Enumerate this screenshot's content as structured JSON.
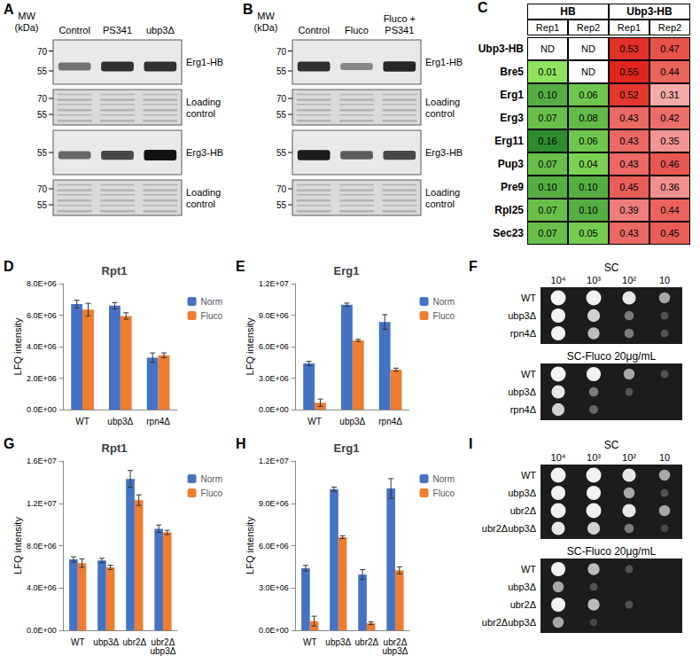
{
  "panels": [
    {
      "label": "A",
      "type": "blot",
      "mw_title": "MW\n(kDa)",
      "lanes": [
        "Control",
        "PS341",
        "ubp3Δ"
      ],
      "rows": [
        {
          "name": "Erg1-HB",
          "kind": "blot",
          "markers": [
            "70",
            "55"
          ],
          "bands": [
            0.55,
            0.85,
            0.85
          ]
        },
        {
          "name": "Loading\ncontrol",
          "kind": "loading",
          "markers": [
            "70",
            "55"
          ]
        },
        {
          "name": "Erg3-HB",
          "kind": "blot",
          "markers": [
            "55"
          ],
          "bands": [
            0.6,
            0.75,
            1.0
          ]
        },
        {
          "name": "Loading\ncontrol",
          "kind": "loading",
          "markers": [
            "70",
            "55"
          ]
        }
      ]
    },
    {
      "label": "B",
      "type": "blot",
      "mw_title": "MW\n(kDa)",
      "lanes": [
        "Control",
        "Fluco",
        "Fluco +\nPS341"
      ],
      "rows": [
        {
          "name": "Erg1-HB",
          "kind": "blot",
          "markers": [
            "70",
            "55"
          ],
          "bands": [
            0.85,
            0.45,
            0.9
          ]
        },
        {
          "name": "Loading\ncontrol",
          "kind": "loading",
          "markers": [
            "70",
            "55"
          ]
        },
        {
          "name": "Erg3-HB",
          "kind": "blot",
          "markers": [
            "55"
          ],
          "bands": [
            0.95,
            0.65,
            0.75
          ]
        },
        {
          "name": "Loading\ncontrol",
          "kind": "loading",
          "markers": [
            "70",
            "55"
          ]
        }
      ]
    },
    {
      "label": "C",
      "type": "table",
      "groups": [
        {
          "name": "HB",
          "columns": [
            "Rep1",
            "Rep2"
          ]
        },
        {
          "name": "Ubp3-HB",
          "columns": [
            "Rep1",
            "Rep2"
          ]
        }
      ],
      "rows": [
        {
          "name": "Ubp3-HB",
          "cells": [
            "ND",
            "ND",
            "0.53",
            "0.47"
          ]
        },
        {
          "name": "Bre5",
          "cells": [
            "0.01",
            "ND",
            "0.55",
            "0.44"
          ]
        },
        {
          "name": "Erg1",
          "cells": [
            "0.10",
            "0.06",
            "0.52",
            "0.31"
          ]
        },
        {
          "name": "Erg3",
          "cells": [
            "0.07",
            "0.08",
            "0.43",
            "0.42"
          ]
        },
        {
          "name": "Erg11",
          "cells": [
            "0.16",
            "0.06",
            "0.43",
            "0.35"
          ]
        },
        {
          "name": "Pup3",
          "cells": [
            "0.07",
            "0.04",
            "0.43",
            "0.46"
          ]
        },
        {
          "name": "Pre9",
          "cells": [
            "0.10",
            "0.10",
            "0.45",
            "0.36"
          ]
        },
        {
          "name": "Rpl25",
          "cells": [
            "0.07",
            "0.10",
            "0.39",
            "0.44"
          ]
        },
        {
          "name": "Sec23",
          "cells": [
            "0.07",
            "0.05",
            "0.43",
            "0.45"
          ]
        }
      ]
    },
    {
      "label": "F",
      "type": "spot_assay",
      "columns": [
        "10⁴",
        "10³",
        "10²",
        "10"
      ],
      "plates": [
        {
          "medium": "SC",
          "rows": [
            {
              "strain": "WT",
              "growth": [
                1.0,
                1.0,
                0.8,
                0.5
              ]
            },
            {
              "strain": "ubp3Δ",
              "growth": [
                0.9,
                0.7,
                0.3,
                0.1
              ]
            },
            {
              "strain": "rpn4Δ",
              "growth": [
                0.9,
                0.6,
                0.3,
                0.1
              ]
            }
          ]
        },
        {
          "medium": "SC-Fluco 20μg/mL",
          "rows": [
            {
              "strain": "WT",
              "growth": [
                1.0,
                0.9,
                0.5,
                0.1
              ]
            },
            {
              "strain": "ubp3Δ",
              "growth": [
                0.8,
                0.3,
                0.1,
                0.0
              ]
            },
            {
              "strain": "rpn4Δ",
              "growth": [
                0.7,
                0.2,
                0.0,
                0.0
              ]
            }
          ]
        }
      ]
    },
    {
      "label": "I",
      "type": "spot_assay",
      "columns": [
        "10⁴",
        "10³",
        "10²",
        "10"
      ],
      "plates": [
        {
          "medium": "SC",
          "rows": [
            {
              "strain": "WT",
              "growth": [
                1.0,
                1.0,
                0.8,
                0.5
              ]
            },
            {
              "strain": "ubp3Δ",
              "growth": [
                0.9,
                0.9,
                0.5,
                0.1
              ]
            },
            {
              "strain": "ubr2Δ",
              "growth": [
                1.0,
                1.0,
                0.8,
                0.5
              ]
            },
            {
              "strain": "ubr2Δubp3Δ",
              "growth": [
                0.8,
                0.7,
                0.3,
                0.05
              ]
            }
          ]
        },
        {
          "medium": "SC-Fluco 20μg/mL",
          "rows": [
            {
              "strain": "WT",
              "growth": [
                0.9,
                0.6,
                0.1,
                0.0
              ]
            },
            {
              "strain": "ubp3Δ",
              "growth": [
                0.5,
                0.1,
                0.0,
                0.0
              ]
            },
            {
              "strain": "ubr2Δ",
              "growth": [
                0.9,
                0.6,
                0.1,
                0.0
              ]
            },
            {
              "strain": "ubr2Δubp3Δ",
              "growth": [
                0.5,
                0.05,
                0.0,
                0.0
              ]
            }
          ]
        }
      ]
    }
  ],
  "chart_data": [
    {
      "label": "D",
      "type": "bar",
      "title": "Rpt1",
      "y_label": "LFQ intensity",
      "categories": [
        "WT",
        "ubp3Δ",
        "rpn4Δ"
      ],
      "series": [
        {
          "name": "Norm",
          "color": "#4472C4",
          "values": [
            6700000,
            6600000,
            3300000
          ],
          "errors": [
            250000,
            200000,
            300000
          ]
        },
        {
          "name": "Fluco",
          "color": "#ED7D31",
          "values": [
            6350000,
            5950000,
            3450000
          ],
          "errors": [
            400000,
            200000,
            150000
          ]
        }
      ],
      "ylim": [
        0,
        8000000
      ],
      "yticks": [
        {
          "value": 0,
          "label": "0.0E+00"
        },
        {
          "value": 2000000,
          "label": "2.0E+06"
        },
        {
          "value": 4000000,
          "label": "4.0E+06"
        },
        {
          "value": 6000000,
          "label": "6.0E+06"
        },
        {
          "value": 8000000,
          "label": "8.0E+06"
        }
      ],
      "legend": "right",
      "grid": false
    },
    {
      "label": "E",
      "type": "bar",
      "title": "Erg1",
      "y_label": "LFQ intensity",
      "categories": [
        "WT",
        "ubp3Δ",
        "rpn4Δ"
      ],
      "series": [
        {
          "name": "Norm",
          "color": "#4472C4",
          "values": [
            4400000,
            10000000,
            8350000
          ],
          "errors": [
            200000,
            150000,
            700000
          ]
        },
        {
          "name": "Fluco",
          "color": "#ED7D31",
          "values": [
            650000,
            6600000,
            3800000
          ],
          "errors": [
            350000,
            100000,
            150000
          ]
        }
      ],
      "ylim": [
        0,
        12000000
      ],
      "yticks": [
        {
          "value": 0,
          "label": "0.0E+00"
        },
        {
          "value": 3000000,
          "label": "3.0E+06"
        },
        {
          "value": 6000000,
          "label": "6.0E+06"
        },
        {
          "value": 9000000,
          "label": "9.0E+06"
        },
        {
          "value": 12000000,
          "label": "1.2E+07"
        }
      ],
      "legend": "right",
      "grid": false
    },
    {
      "label": "G",
      "type": "bar",
      "title": "Rpt1",
      "y_label": "LFQ intensity",
      "categories": [
        "WT",
        "ubp3Δ",
        "ubr2Δ",
        "ubr2Δ\nubp3Δ"
      ],
      "series": [
        {
          "name": "Norm",
          "color": "#4472C4",
          "values": [
            6700000,
            6600000,
            14300000,
            9600000
          ],
          "errors": [
            250000,
            200000,
            800000,
            350000
          ]
        },
        {
          "name": "Fluco",
          "color": "#ED7D31",
          "values": [
            6350000,
            5950000,
            12300000,
            9250000
          ],
          "errors": [
            400000,
            200000,
            500000,
            200000
          ]
        }
      ],
      "ylim": [
        0,
        16000000
      ],
      "yticks": [
        {
          "value": 0,
          "label": "0.0E+00"
        },
        {
          "value": 4000000,
          "label": "4.0E+06"
        },
        {
          "value": 8000000,
          "label": "8.0E+06"
        },
        {
          "value": 12000000,
          "label": "1.2E+07"
        },
        {
          "value": 16000000,
          "label": "1.6E+07"
        }
      ],
      "legend": "right",
      "grid": false
    },
    {
      "label": "H",
      "type": "bar",
      "title": "Erg1",
      "y_label": "LFQ intensity",
      "categories": [
        "WT",
        "ubp3Δ",
        "ubr2Δ",
        "ubr2Δ\nubp3Δ"
      ],
      "series": [
        {
          "name": "Norm",
          "color": "#4472C4",
          "values": [
            4400000,
            10000000,
            3950000,
            10050000
          ],
          "errors": [
            200000,
            150000,
            350000,
            700000
          ]
        },
        {
          "name": "Fluco",
          "color": "#ED7D31",
          "values": [
            650000,
            6600000,
            500000,
            4250000
          ],
          "errors": [
            350000,
            100000,
            100000,
            250000
          ]
        }
      ],
      "ylim": [
        0,
        12000000
      ],
      "yticks": [
        {
          "value": 0,
          "label": "0.0E+00"
        },
        {
          "value": 3000000,
          "label": "3.0E+06"
        },
        {
          "value": 6000000,
          "label": "6.0E+06"
        },
        {
          "value": 9000000,
          "label": "9.0E+06"
        },
        {
          "value": 12000000,
          "label": "1.2E+07"
        }
      ],
      "legend": "right",
      "grid": false
    }
  ]
}
